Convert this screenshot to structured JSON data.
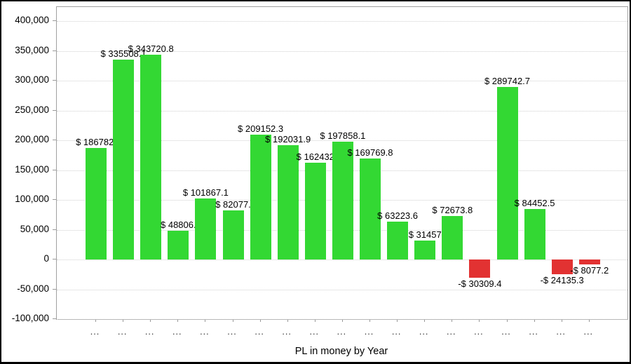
{
  "chart_data": {
    "type": "bar",
    "title": "",
    "xlabel": "PL in money by Year",
    "ylabel": "",
    "legend": "none",
    "grid": "horizontal-dotted",
    "ylim": [
      -100000,
      423500
    ],
    "y_ticks": [
      {
        "value": 400000,
        "label": "400,000"
      },
      {
        "value": 350000,
        "label": "350,000"
      },
      {
        "value": 300000,
        "label": "300,000"
      },
      {
        "value": 250000,
        "label": "250,000"
      },
      {
        "value": 200000,
        "label": "200,000"
      },
      {
        "value": 150000,
        "label": "150,000"
      },
      {
        "value": 100000,
        "label": "100,000"
      },
      {
        "value": 50000,
        "label": "50,000"
      },
      {
        "value": 0,
        "label": "0"
      },
      {
        "value": -50000,
        "label": "-50,000"
      },
      {
        "value": -100000,
        "label": "-100,000"
      }
    ],
    "categories": [
      "...",
      "...",
      "...",
      "...",
      "...",
      "...",
      "...",
      "...",
      "...",
      "...",
      "...",
      "...",
      "...",
      "...",
      "...",
      "...",
      "...",
      "...",
      "..."
    ],
    "values": [
      186782,
      335508.1,
      343720.8,
      48806,
      101867.1,
      82077,
      209152.3,
      192031.9,
      162432,
      197858.1,
      169769.8,
      63223.6,
      31457,
      72673.8,
      -30309.4,
      289742.7,
      84452.5,
      -24135.3,
      -8077.2
    ],
    "bar_labels": [
      "$ 186782.",
      "$ 335508.1",
      "$ 343720.8",
      "$ 48806.",
      "$ 101867.1",
      "$ 82077.",
      "$ 209152.3",
      "$ 192031.9",
      "$ 162432",
      "$ 197858.1",
      "$ 169769.8",
      "$ 63223.6",
      "$ 31457",
      "$ 72673.8",
      "-$ 30309.4",
      "$ 289742.7",
      "$ 84452.5",
      "-$ 24135.3",
      "-$ 8077.2"
    ],
    "colors": {
      "positive_bar": "#33d833",
      "negative_bar": "#e23232",
      "grid": "#d0d0d0",
      "axis_border": "#a0a0a0",
      "tick": "#9a9a9a",
      "text": "#000000"
    }
  }
}
